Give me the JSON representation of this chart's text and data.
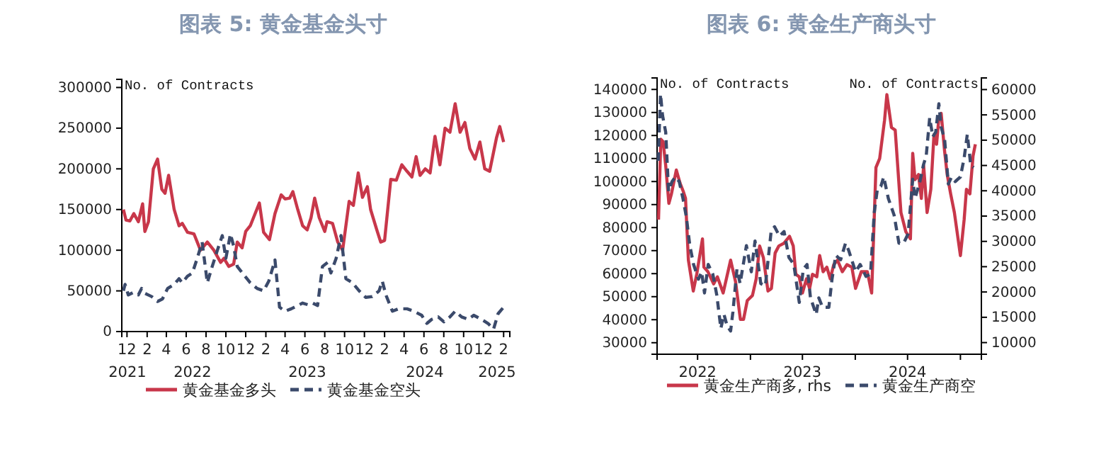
{
  "chart_data": [
    {
      "type": "line",
      "title": "图表 5:  黄金基金头寸",
      "ylabel": "No. of Contracts",
      "legend": "bottom",
      "xlim": [
        "2021-11-15",
        "2025-02-20"
      ],
      "ylim": [
        0,
        310000
      ],
      "yticks": [
        0,
        50000,
        100000,
        150000,
        200000,
        250000,
        300000
      ],
      "annotations": [
        "2021",
        "2022",
        "2023",
        "2024",
        "2025"
      ],
      "xticks": [
        {
          "value": "2021-12-01",
          "label": "12"
        },
        {
          "value": "2022-02-01",
          "label": "2"
        },
        {
          "value": "2022-04-01",
          "label": "4"
        },
        {
          "value": "2022-06-01",
          "label": "6"
        },
        {
          "value": "2022-08-01",
          "label": "8"
        },
        {
          "value": "2022-10-01",
          "label": "10"
        },
        {
          "value": "2022-12-01",
          "label": "12"
        },
        {
          "value": "2023-02-01",
          "label": "2"
        },
        {
          "value": "2023-04-01",
          "label": "4"
        },
        {
          "value": "2023-06-01",
          "label": "6"
        },
        {
          "value": "2023-08-01",
          "label": "8"
        },
        {
          "value": "2023-10-01",
          "label": "10"
        },
        {
          "value": "2023-12-01",
          "label": "12"
        },
        {
          "value": "2024-02-01",
          "label": "2"
        },
        {
          "value": "2024-04-01",
          "label": "4"
        },
        {
          "value": "2024-06-01",
          "label": "6"
        },
        {
          "value": "2024-08-01",
          "label": "8"
        },
        {
          "value": "2024-10-01",
          "label": "10"
        },
        {
          "value": "2024-12-01",
          "label": "12"
        },
        {
          "value": "2025-02-01",
          "label": "2"
        }
      ],
      "series": [
        {
          "name": "黄金基金多头",
          "color": "#c8374a",
          "line_style": "solid",
          "x": [
            "2021-11-20",
            "2021-11-28",
            "2021-12-10",
            "2021-12-22",
            "2022-01-05",
            "2022-01-18",
            "2022-01-25",
            "2022-02-05",
            "2022-02-20",
            "2022-03-05",
            "2022-03-18",
            "2022-03-28",
            "2022-04-08",
            "2022-04-25",
            "2022-05-10",
            "2022-05-20",
            "2022-06-05",
            "2022-06-25",
            "2022-07-15",
            "2022-08-05",
            "2022-08-25",
            "2022-09-15",
            "2022-09-25",
            "2022-10-10",
            "2022-10-25",
            "2022-11-05",
            "2022-11-20",
            "2022-12-01",
            "2022-12-15",
            "2023-01-12",
            "2023-01-25",
            "2023-02-12",
            "2023-03-01",
            "2023-03-20",
            "2023-04-01",
            "2023-04-15",
            "2023-04-25",
            "2023-05-10",
            "2023-05-25",
            "2023-06-08",
            "2023-06-20",
            "2023-07-01",
            "2023-07-15",
            "2023-08-01",
            "2023-08-08",
            "2023-08-25",
            "2023-09-10",
            "2023-09-25",
            "2023-10-15",
            "2023-10-28",
            "2023-11-12",
            "2023-11-25",
            "2023-12-10",
            "2023-12-20",
            "2024-01-08",
            "2024-01-20",
            "2024-02-01",
            "2024-02-20",
            "2024-03-08",
            "2024-03-25",
            "2024-04-10",
            "2024-04-25",
            "2024-05-08",
            "2024-05-20",
            "2024-06-05",
            "2024-06-20",
            "2024-07-05",
            "2024-07-20",
            "2024-08-05",
            "2024-08-20",
            "2024-09-05",
            "2024-09-20",
            "2024-10-05",
            "2024-10-20",
            "2024-11-05",
            "2024-11-20",
            "2024-12-05",
            "2024-12-20",
            "2025-01-10",
            "2025-01-20",
            "2025-02-01"
          ],
          "values": [
            150000,
            137000,
            136000,
            145000,
            135000,
            157000,
            123000,
            135000,
            200000,
            212000,
            175000,
            170000,
            192000,
            150000,
            130000,
            133000,
            122000,
            120000,
            100000,
            110000,
            100000,
            85000,
            90000,
            80000,
            83000,
            110000,
            103000,
            123000,
            130000,
            158000,
            122000,
            113000,
            145000,
            168000,
            163000,
            164000,
            172000,
            150000,
            130000,
            125000,
            140000,
            164000,
            140000,
            123000,
            135000,
            133000,
            110000,
            100000,
            160000,
            155000,
            195000,
            165000,
            178000,
            150000,
            125000,
            110000,
            112000,
            187000,
            186000,
            205000,
            197000,
            190000,
            215000,
            192000,
            200000,
            195000,
            240000,
            205000,
            250000,
            245000,
            280000,
            245000,
            257000,
            225000,
            212000,
            233000,
            200000,
            197000,
            238000,
            252000,
            233000
          ]
        },
        {
          "name": "黄金基金空头",
          "color": "#3b4a6b",
          "line_style": "dashed",
          "x": [
            "2021-11-20",
            "2021-11-25",
            "2021-12-05",
            "2021-12-20",
            "2022-01-05",
            "2022-01-15",
            "2022-01-25",
            "2022-02-15",
            "2022-03-05",
            "2022-03-20",
            "2022-04-05",
            "2022-04-25",
            "2022-05-10",
            "2022-05-20",
            "2022-06-05",
            "2022-06-20",
            "2022-07-05",
            "2022-07-20",
            "2022-08-05",
            "2022-08-20",
            "2022-09-05",
            "2022-09-20",
            "2022-10-01",
            "2022-10-15",
            "2022-10-25",
            "2022-11-05",
            "2022-11-25",
            "2022-12-15",
            "2023-01-05",
            "2023-01-25",
            "2023-02-10",
            "2023-03-01",
            "2023-03-15",
            "2023-04-01",
            "2023-04-20",
            "2023-05-10",
            "2023-05-25",
            "2023-06-10",
            "2023-06-25",
            "2023-07-10",
            "2023-07-25",
            "2023-08-10",
            "2023-08-20",
            "2023-09-05",
            "2023-09-20",
            "2023-10-05",
            "2023-10-25",
            "2023-11-15",
            "2023-12-05",
            "2023-12-25",
            "2024-01-15",
            "2024-01-25",
            "2024-02-05",
            "2024-02-25",
            "2024-03-15",
            "2024-04-10",
            "2024-05-01",
            "2024-05-25",
            "2024-06-10",
            "2024-06-25",
            "2024-07-15",
            "2024-08-01",
            "2024-08-20",
            "2024-09-05",
            "2024-09-25",
            "2024-10-15",
            "2024-11-01",
            "2024-11-25",
            "2024-12-15",
            "2025-01-01",
            "2025-01-15",
            "2025-02-01"
          ],
          "values": [
            50000,
            58000,
            45000,
            48000,
            45000,
            53000,
            47000,
            43000,
            37000,
            40000,
            53000,
            58000,
            65000,
            60000,
            68000,
            72000,
            90000,
            110000,
            60000,
            80000,
            100000,
            118000,
            90000,
            120000,
            105000,
            80000,
            70000,
            60000,
            53000,
            50000,
            62000,
            88000,
            30000,
            25000,
            28000,
            32000,
            35000,
            33000,
            35000,
            32000,
            80000,
            85000,
            72000,
            90000,
            118000,
            65000,
            60000,
            50000,
            42000,
            43000,
            50000,
            62000,
            45000,
            25000,
            28000,
            28000,
            25000,
            20000,
            10000,
            15000,
            18000,
            12000,
            18000,
            25000,
            18000,
            15000,
            20000,
            15000,
            10000,
            3000,
            22000,
            30000
          ]
        }
      ]
    },
    {
      "type": "line",
      "title": "图表 6:  黄金生产商头寸",
      "ylabel": "No. of Contracts",
      "y2label": "No. of Contracts",
      "legend": "bottom",
      "xlim": [
        "2022-02-10",
        "2025-03-15"
      ],
      "ylim": [
        25000,
        145000
      ],
      "yticks": [
        30000,
        40000,
        50000,
        60000,
        70000,
        80000,
        90000,
        100000,
        110000,
        120000,
        130000,
        140000
      ],
      "y2lim": [
        7700,
        62300
      ],
      "y2ticks": [
        10000,
        15000,
        20000,
        25000,
        30000,
        35000,
        40000,
        45000,
        50000,
        55000,
        60000
      ],
      "xticks": [
        {
          "value": "2022-07-01",
          "label": "2022"
        },
        {
          "value": "2023-01-01",
          "label": null
        },
        {
          "value": "2023-07-01",
          "label": "2023"
        },
        {
          "value": "2024-01-01",
          "label": null
        },
        {
          "value": "2024-07-01",
          "label": "2024"
        },
        {
          "value": "2025-01-01",
          "label": null
        }
      ],
      "series": [
        {
          "name": "黄金生产商多, rhs",
          "color": "#c8374a",
          "line_style": "solid",
          "axis": "y2",
          "x": [
            "2022-02-15",
            "2022-02-23",
            "2022-03-03",
            "2022-03-12",
            "2022-03-23",
            "2022-04-01",
            "2022-04-18",
            "2022-05-01",
            "2022-05-12",
            "2022-05-20",
            "2022-05-30",
            "2022-06-16",
            "2022-06-28",
            "2022-07-18",
            "2022-07-23",
            "2022-08-06",
            "2022-08-26",
            "2022-09-08",
            "2022-09-28",
            "2022-10-24",
            "2022-11-10",
            "2022-11-27",
            "2022-12-08",
            "2022-12-21",
            "2023-01-08",
            "2023-01-21",
            "2023-02-02",
            "2023-02-15",
            "2023-03-03",
            "2023-03-15",
            "2023-03-28",
            "2023-04-10",
            "2023-04-27",
            "2023-05-17",
            "2023-05-30",
            "2023-06-08",
            "2023-06-20",
            "2023-07-01",
            "2023-07-15",
            "2023-07-26",
            "2023-08-05",
            "2023-08-20",
            "2023-08-30",
            "2023-09-11",
            "2023-09-24",
            "2023-10-06",
            "2023-10-18",
            "2023-10-31",
            "2023-11-17",
            "2023-12-03",
            "2023-12-20",
            "2024-01-02",
            "2024-01-22",
            "2024-02-12",
            "2024-02-27",
            "2024-03-13",
            "2024-03-26",
            "2024-04-12",
            "2024-04-20",
            "2024-05-06",
            "2024-05-19",
            "2024-06-08",
            "2024-06-25",
            "2024-07-11",
            "2024-07-19",
            "2024-07-27",
            "2024-08-08",
            "2024-08-18",
            "2024-08-26",
            "2024-09-07",
            "2024-09-20",
            "2024-10-01",
            "2024-10-10",
            "2024-10-18",
            "2024-10-26",
            "2024-11-07",
            "2024-11-16",
            "2024-11-28",
            "2024-12-11",
            "2025-01-01",
            "2025-01-14",
            "2025-01-22",
            "2025-02-03",
            "2025-02-14",
            "2025-02-22"
          ],
          "values": [
            34300,
            50200,
            49700,
            45000,
            37500,
            39400,
            44100,
            41500,
            39900,
            38500,
            26300,
            20200,
            23500,
            30500,
            24900,
            24000,
            21600,
            23000,
            19800,
            26300,
            22100,
            14600,
            14600,
            18300,
            19300,
            22600,
            29100,
            26800,
            20200,
            20700,
            27700,
            29100,
            29600,
            31000,
            29100,
            23500,
            23000,
            19800,
            22600,
            20700,
            23500,
            23000,
            27200,
            24000,
            24900,
            22600,
            25400,
            26300,
            24000,
            25400,
            24900,
            20700,
            24000,
            24000,
            19800,
            44600,
            46400,
            54000,
            59000,
            52500,
            52000,
            35700,
            31900,
            30500,
            47400,
            42200,
            43200,
            38500,
            45000,
            35700,
            40300,
            51100,
            49200,
            54400,
            55300,
            47800,
            43200,
            39400,
            35700,
            27200,
            34300,
            40300,
            39400,
            46900,
            49200
          ]
        },
        {
          "name": "黄金生产商空",
          "color": "#3b4a6b",
          "line_style": "dashed",
          "x": [
            "2022-02-14",
            "2022-02-22",
            "2022-03-01",
            "2022-03-12",
            "2022-03-22",
            "2022-04-03",
            "2022-04-15",
            "2022-04-28",
            "2022-05-11",
            "2022-05-23",
            "2022-06-04",
            "2022-06-17",
            "2022-07-04",
            "2022-07-15",
            "2022-07-25",
            "2022-08-07",
            "2022-08-23",
            "2022-09-06",
            "2022-09-20",
            "2022-10-01",
            "2022-10-12",
            "2022-10-24",
            "2022-11-01",
            "2022-11-15",
            "2022-11-26",
            "2022-12-18",
            "2023-01-04",
            "2023-01-17",
            "2023-02-06",
            "2023-02-22",
            "2023-03-14",
            "2023-03-26",
            "2023-04-12",
            "2023-04-28",
            "2023-05-15",
            "2023-06-01",
            "2023-06-20",
            "2023-07-04",
            "2023-07-17",
            "2023-07-29",
            "2023-08-18",
            "2023-08-27",
            "2023-09-09",
            "2023-10-01",
            "2023-10-12",
            "2023-10-25",
            "2023-11-11",
            "2023-11-28",
            "2023-12-09",
            "2024-01-02",
            "2024-01-18",
            "2024-02-07",
            "2024-02-23",
            "2024-03-07",
            "2024-03-18",
            "2024-03-30",
            "2024-04-09",
            "2024-04-25",
            "2024-05-15",
            "2024-06-01",
            "2024-06-17",
            "2024-07-03",
            "2024-07-19",
            "2024-07-27",
            "2024-08-13",
            "2024-08-25",
            "2024-09-04",
            "2024-09-16",
            "2024-09-27",
            "2024-10-07",
            "2024-10-18",
            "2024-10-26",
            "2024-11-07",
            "2024-11-20",
            "2024-12-01",
            "2024-12-14",
            "2025-01-01",
            "2025-01-14",
            "2025-01-25",
            "2025-02-06",
            "2025-02-16"
          ],
          "values": [
            109000,
            138000,
            128700,
            121500,
            95800,
            100000,
            102000,
            100000,
            92700,
            84500,
            72200,
            64000,
            57600,
            60800,
            51600,
            64000,
            59800,
            50600,
            36200,
            42300,
            37200,
            35100,
            43400,
            61900,
            55700,
            72200,
            60800,
            74200,
            55700,
            54700,
            78300,
            80400,
            76300,
            78300,
            67000,
            64000,
            47500,
            61900,
            64000,
            49500,
            42300,
            49500,
            45400,
            45400,
            57600,
            68000,
            66000,
            73200,
            70100,
            60800,
            64000,
            58800,
            59800,
            86500,
            96800,
            97900,
            102000,
            92700,
            85500,
            73200,
            73200,
            77300,
            101000,
            92700,
            100000,
            107100,
            111200,
            127700,
            119400,
            121500,
            133800,
            123600,
            118400,
            98900,
            102000,
            100000,
            102000,
            110200,
            120500,
            107100,
            106100
          ]
        }
      ]
    }
  ]
}
